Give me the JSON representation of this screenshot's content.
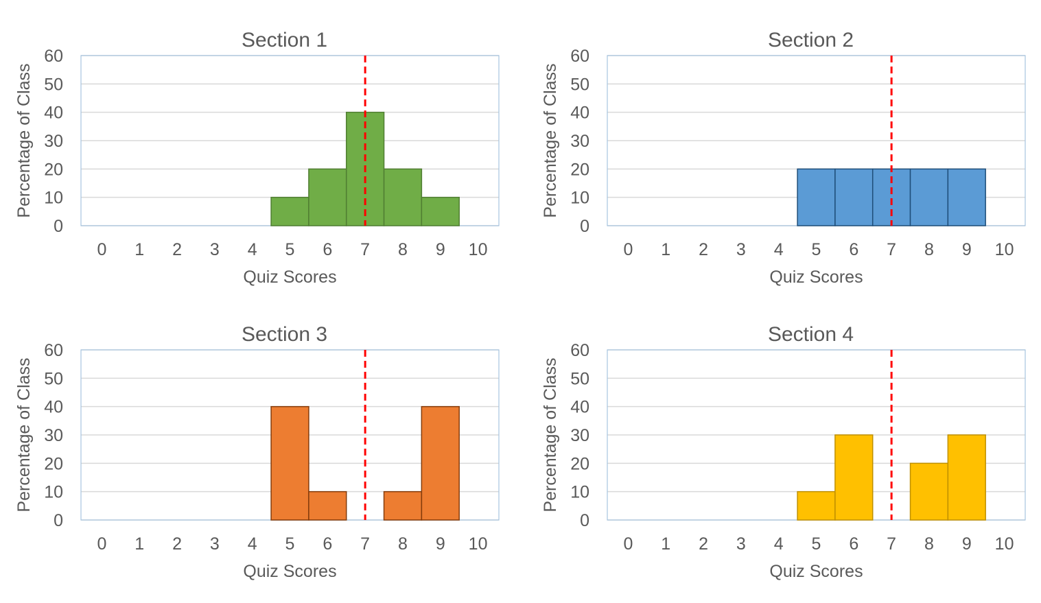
{
  "chart_data": [
    {
      "type": "bar",
      "title": "Section 1",
      "xlabel": "Quiz Scores",
      "ylabel": "Percentage of Class",
      "categories": [
        0,
        1,
        2,
        3,
        4,
        5,
        6,
        7,
        8,
        9,
        10
      ],
      "values": [
        0,
        0,
        0,
        0,
        0,
        10,
        20,
        40,
        20,
        10,
        0
      ],
      "ylim": [
        0,
        60
      ],
      "yticks": [
        0,
        10,
        20,
        30,
        40,
        50,
        60
      ],
      "reference_line_x": 7,
      "color": "#70AD47",
      "edge_color": "#507E32",
      "grid": true
    },
    {
      "type": "bar",
      "title": "Section 2",
      "xlabel": "Quiz Scores",
      "ylabel": "Percentage of Class",
      "categories": [
        0,
        1,
        2,
        3,
        4,
        5,
        6,
        7,
        8,
        9,
        10
      ],
      "values": [
        0,
        0,
        0,
        0,
        0,
        20,
        20,
        20,
        20,
        20,
        0
      ],
      "ylim": [
        0,
        60
      ],
      "yticks": [
        0,
        10,
        20,
        30,
        40,
        50,
        60
      ],
      "reference_line_x": 7,
      "color": "#5B9BD5",
      "edge_color": "#1F4E79",
      "grid": true
    },
    {
      "type": "bar",
      "title": "Section 3",
      "xlabel": "Quiz Scores",
      "ylabel": "Percentage of Class",
      "categories": [
        0,
        1,
        2,
        3,
        4,
        5,
        6,
        7,
        8,
        9,
        10
      ],
      "values": [
        0,
        0,
        0,
        0,
        0,
        40,
        10,
        0,
        10,
        40,
        0
      ],
      "ylim": [
        0,
        60
      ],
      "yticks": [
        0,
        10,
        20,
        30,
        40,
        50,
        60
      ],
      "reference_line_x": 7,
      "color": "#ED7D31",
      "edge_color": "#843C0C",
      "grid": true
    },
    {
      "type": "bar",
      "title": "Section 4",
      "xlabel": "Quiz Scores",
      "ylabel": "Percentage of Class",
      "categories": [
        0,
        1,
        2,
        3,
        4,
        5,
        6,
        7,
        8,
        9,
        10
      ],
      "values": [
        0,
        0,
        0,
        0,
        0,
        10,
        30,
        0,
        20,
        30,
        0
      ],
      "ylim": [
        0,
        60
      ],
      "yticks": [
        0,
        10,
        20,
        30,
        40,
        50,
        60
      ],
      "reference_line_x": 7,
      "color": "#FFC000",
      "edge_color": "#BF9000",
      "grid": true
    }
  ],
  "reference_line_color": "#FF0000"
}
